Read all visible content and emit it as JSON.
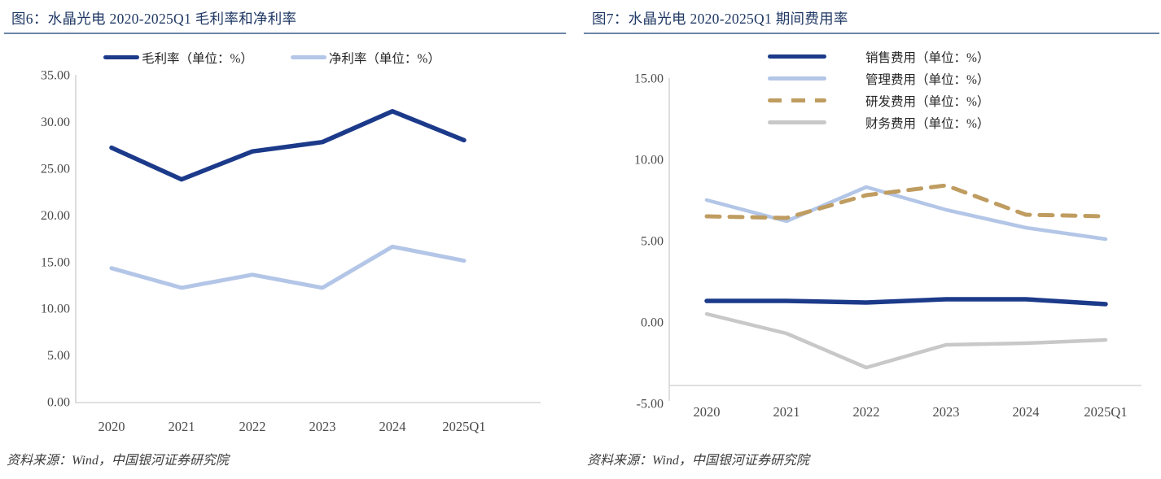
{
  "figures": [
    {
      "title": "图6：水晶光电 2020-2025Q1 毛利率和净利率",
      "source": "资料来源：Wind，中国银河证券研究院",
      "chart_data": {
        "type": "line",
        "categories": [
          "2020",
          "2021",
          "2022",
          "2023",
          "2024",
          "2025Q1"
        ],
        "series": [
          {
            "name": "毛利率（单位：%）",
            "color": "#1c3a8a",
            "dashed": false,
            "values": [
              27.2,
              23.8,
              26.8,
              27.8,
              31.1,
              28.0
            ]
          },
          {
            "name": "净利率（单位：%）",
            "color": "#b3c6e7",
            "dashed": false,
            "values": [
              14.3,
              12.2,
              13.6,
              12.2,
              16.6,
              15.1
            ]
          }
        ],
        "ylim": [
          0,
          35
        ],
        "ytick_labels": [
          "35.00",
          "30.00",
          "25.00",
          "20.00",
          "15.00",
          "10.00",
          "5.00",
          "0.00"
        ],
        "ytick_values": [
          35,
          30,
          25,
          20,
          15,
          10,
          5,
          0
        ],
        "xlabel": "",
        "ylabel": "",
        "grid": false,
        "legend_position": "top"
      }
    },
    {
      "title": "图7：水晶光电 2020-2025Q1 期间费用率",
      "source": "资料来源：Wind，中国银河证券研究院",
      "chart_data": {
        "type": "line",
        "categories": [
          "2020",
          "2021",
          "2022",
          "2023",
          "2024",
          "2025Q1"
        ],
        "series": [
          {
            "name": "销售费用（单位：%）",
            "color": "#1c3a8a",
            "dashed": false,
            "values": [
              1.3,
              1.3,
              1.2,
              1.4,
              1.4,
              1.1
            ]
          },
          {
            "name": "管理费用（单位：%）",
            "color": "#b3c6e7",
            "dashed": false,
            "values": [
              7.5,
              6.2,
              8.3,
              6.9,
              5.8,
              5.1
            ]
          },
          {
            "name": "研发费用（单位：%）",
            "color": "#bf9c60",
            "dashed": true,
            "values": [
              6.5,
              6.4,
              7.8,
              8.4,
              6.6,
              6.5
            ]
          },
          {
            "name": "财务费用（单位：%）",
            "color": "#c8c8c8",
            "dashed": false,
            "values": [
              0.5,
              -0.7,
              -2.8,
              -1.4,
              -1.3,
              -1.1
            ]
          }
        ],
        "ylim": [
          -5,
          15
        ],
        "ytick_labels": [
          "15.00",
          "10.00",
          "5.00",
          "0.00",
          "-5.00"
        ],
        "ytick_values": [
          15,
          10,
          5,
          0,
          -5
        ],
        "xlabel": "",
        "ylabel": "",
        "grid": false,
        "legend_position": "top-right"
      }
    }
  ],
  "colors": {
    "title_text": "#1f3864",
    "title_rule": "#6b87a6",
    "axis_line": "#d6d6d6",
    "tick_text": "#4a4a4a",
    "source_text": "#3d3d3d"
  }
}
